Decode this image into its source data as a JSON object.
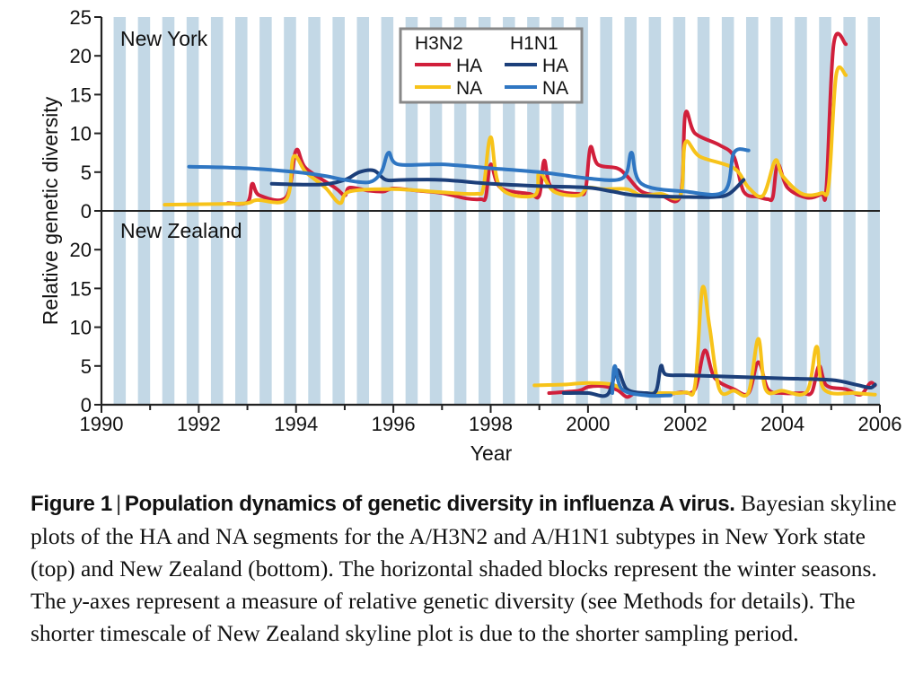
{
  "chart_data": {
    "type": "line",
    "xlabel": "Year",
    "ylabel": "Relative genetic diversity",
    "xlim": [
      1990,
      2006
    ],
    "x_ticks": [
      "1990",
      "1992",
      "1994",
      "1996",
      "1998",
      "2000",
      "2002",
      "2004",
      "2006"
    ],
    "winter_shading": "vertical light-blue blocks, one per winter season",
    "legend": {
      "position": "top-center",
      "group_titles": [
        "H3N2",
        "H1N1"
      ],
      "entries": [
        {
          "group": "H3N2",
          "label": "HA",
          "color": "#d11f3b"
        },
        {
          "group": "H3N2",
          "label": "NA",
          "color": "#f7c31a"
        },
        {
          "group": "H1N1",
          "label": "HA",
          "color": "#1c3f7a"
        },
        {
          "group": "H1N1",
          "label": "NA",
          "color": "#2f76c2"
        }
      ]
    },
    "panels": [
      {
        "name": "New York",
        "ylim": [
          0,
          25
        ],
        "y_ticks": [
          "0",
          "5",
          "10",
          "15",
          "20",
          "25"
        ],
        "series": [
          {
            "name": "H3N2 HA",
            "color": "#d11f3b",
            "points": [
              [
                1992.6,
                1.0
              ],
              [
                1993.0,
                1.1
              ],
              [
                1993.1,
                3.5
              ],
              [
                1993.25,
                2.0
              ],
              [
                1993.8,
                1.8
              ],
              [
                1994.0,
                7.8
              ],
              [
                1994.2,
                5.5
              ],
              [
                1994.8,
                3.0
              ],
              [
                1995.0,
                2.0
              ],
              [
                1995.1,
                3.0
              ],
              [
                1995.5,
                2.6
              ],
              [
                1995.8,
                2.5
              ],
              [
                1996.0,
                2.9
              ],
              [
                1996.5,
                2.6
              ],
              [
                1997.0,
                2.3
              ],
              [
                1997.5,
                1.6
              ],
              [
                1997.8,
                1.5
              ],
              [
                1997.9,
                1.8
              ],
              [
                1998.0,
                6.0
              ],
              [
                1998.2,
                3.0
              ],
              [
                1998.8,
                2.2
              ],
              [
                1999.0,
                2.0
              ],
              [
                1999.1,
                6.5
              ],
              [
                1999.25,
                3.0
              ],
              [
                1999.8,
                2.2
              ],
              [
                1999.95,
                2.8
              ],
              [
                2000.05,
                8.2
              ],
              [
                2000.2,
                6.0
              ],
              [
                2000.6,
                5.5
              ],
              [
                2000.8,
                4.5
              ],
              [
                2001.1,
                2.5
              ],
              [
                2001.5,
                2.0
              ],
              [
                2001.9,
                2.0
              ],
              [
                2002.0,
                12.5
              ],
              [
                2002.2,
                10.0
              ],
              [
                2002.7,
                8.5
              ],
              [
                2003.0,
                7.0
              ],
              [
                2003.2,
                2.5
              ],
              [
                2003.5,
                1.8
              ],
              [
                2003.7,
                1.5
              ],
              [
                2003.8,
                1.8
              ],
              [
                2003.9,
                6.0
              ],
              [
                2004.1,
                3.0
              ],
              [
                2004.5,
                1.7
              ],
              [
                2004.8,
                2.2
              ],
              [
                2004.9,
                3.0
              ],
              [
                2005.05,
                21.5
              ],
              [
                2005.3,
                21.5
              ]
            ]
          },
          {
            "name": "H3N2 NA",
            "color": "#f7c31a",
            "points": [
              [
                1991.3,
                0.8
              ],
              [
                1992.5,
                0.9
              ],
              [
                1993.0,
                1.0
              ],
              [
                1993.2,
                1.4
              ],
              [
                1993.8,
                1.5
              ],
              [
                1993.95,
                7.0
              ],
              [
                1994.2,
                5.0
              ],
              [
                1994.6,
                3.0
              ],
              [
                1994.9,
                1.0
              ],
              [
                1995.1,
                2.5
              ],
              [
                1996.0,
                2.8
              ],
              [
                1997.0,
                2.4
              ],
              [
                1997.7,
                2.2
              ],
              [
                1997.85,
                3.0
              ],
              [
                1998.0,
                9.5
              ],
              [
                1998.2,
                3.0
              ],
              [
                1998.9,
                2.0
              ],
              [
                1999.0,
                5.0
              ],
              [
                1999.3,
                2.5
              ],
              [
                1999.8,
                2.0
              ],
              [
                2000.0,
                3.0
              ],
              [
                2000.3,
                2.8
              ],
              [
                2000.8,
                2.8
              ],
              [
                2001.1,
                2.0
              ],
              [
                2001.5,
                2.2
              ],
              [
                2001.9,
                2.0
              ],
              [
                2002.0,
                8.8
              ],
              [
                2002.3,
                7.0
              ],
              [
                2003.0,
                5.5
              ],
              [
                2003.3,
                3.0
              ],
              [
                2003.6,
                2.0
              ],
              [
                2003.85,
                6.5
              ],
              [
                2004.0,
                4.5
              ],
              [
                2004.4,
                2.2
              ],
              [
                2004.8,
                2.3
              ],
              [
                2004.95,
                3.5
              ],
              [
                2005.1,
                17.5
              ],
              [
                2005.3,
                17.5
              ]
            ]
          },
          {
            "name": "H1N1 HA",
            "color": "#1c3f7a",
            "points": [
              [
                1993.5,
                3.5
              ],
              [
                1994.5,
                3.4
              ],
              [
                1995.0,
                4.0
              ],
              [
                1995.3,
                5.0
              ],
              [
                1995.6,
                5.2
              ],
              [
                1995.85,
                4.0
              ],
              [
                1996.2,
                4.0
              ],
              [
                1997.0,
                4.0
              ],
              [
                1998.0,
                3.5
              ],
              [
                1999.0,
                3.2
              ],
              [
                2000.0,
                3.0
              ],
              [
                2000.5,
                2.5
              ],
              [
                2001.0,
                2.0
              ],
              [
                2002.0,
                1.8
              ],
              [
                2002.6,
                1.8
              ],
              [
                2002.9,
                2.2
              ],
              [
                2003.2,
                4.0
              ]
            ]
          },
          {
            "name": "H1N1 NA",
            "color": "#2f76c2",
            "points": [
              [
                1991.8,
                5.7
              ],
              [
                1993.0,
                5.5
              ],
              [
                1994.0,
                5.0
              ],
              [
                1994.6,
                4.5
              ],
              [
                1995.0,
                4.0
              ],
              [
                1995.5,
                3.7
              ],
              [
                1995.75,
                5.0
              ],
              [
                1995.9,
                7.5
              ],
              [
                1996.1,
                6.0
              ],
              [
                1997.0,
                6.0
              ],
              [
                1998.0,
                5.5
              ],
              [
                1999.0,
                5.0
              ],
              [
                2000.0,
                4.2
              ],
              [
                2000.6,
                4.0
              ],
              [
                2000.8,
                5.0
              ],
              [
                2000.9,
                7.5
              ],
              [
                2001.1,
                3.5
              ],
              [
                2002.0,
                2.5
              ],
              [
                2002.8,
                2.5
              ],
              [
                2003.0,
                7.5
              ],
              [
                2003.3,
                7.8
              ]
            ]
          }
        ]
      },
      {
        "name": "New Zealand",
        "ylim": [
          0,
          25
        ],
        "y_ticks": [
          "0",
          "5",
          "10",
          "15",
          "20"
        ],
        "series": [
          {
            "name": "H3N2 HA",
            "color": "#d11f3b",
            "points": [
              [
                1999.2,
                1.5
              ],
              [
                1999.8,
                1.8
              ],
              [
                2000.0,
                2.3
              ],
              [
                2000.3,
                2.4
              ],
              [
                2000.6,
                1.9
              ],
              [
                2000.8,
                1.0
              ],
              [
                2001.0,
                1.5
              ],
              [
                2001.5,
                1.3
              ],
              [
                2001.9,
                1.6
              ],
              [
                2002.2,
                2.0
              ],
              [
                2002.4,
                7.0
              ],
              [
                2002.6,
                3.5
              ],
              [
                2003.0,
                2.0
              ],
              [
                2003.3,
                1.5
              ],
              [
                2003.5,
                5.5
              ],
              [
                2003.7,
                2.0
              ],
              [
                2004.0,
                1.5
              ],
              [
                2004.4,
                1.5
              ],
              [
                2004.6,
                1.6
              ],
              [
                2004.75,
                5.0
              ],
              [
                2004.9,
                2.5
              ],
              [
                2005.3,
                2.0
              ],
              [
                2005.6,
                1.3
              ],
              [
                2005.8,
                2.8
              ],
              [
                2005.9,
                2.5
              ]
            ]
          },
          {
            "name": "H3N2 NA",
            "color": "#f7c31a",
            "points": [
              [
                1998.9,
                2.5
              ],
              [
                1999.5,
                2.6
              ],
              [
                2000.0,
                2.8
              ],
              [
                2000.5,
                2.6
              ],
              [
                2000.9,
                1.5
              ],
              [
                2001.5,
                1.5
              ],
              [
                2002.0,
                1.6
              ],
              [
                2002.2,
                2.5
              ],
              [
                2002.35,
                15.0
              ],
              [
                2002.5,
                10.0
              ],
              [
                2002.7,
                2.0
              ],
              [
                2003.0,
                1.8
              ],
              [
                2003.3,
                1.6
              ],
              [
                2003.5,
                8.5
              ],
              [
                2003.65,
                2.0
              ],
              [
                2004.0,
                1.8
              ],
              [
                2004.5,
                1.7
              ],
              [
                2004.7,
                7.5
              ],
              [
                2004.85,
                2.0
              ],
              [
                2005.5,
                1.5
              ],
              [
                2005.9,
                1.3
              ]
            ]
          },
          {
            "name": "H1N1 HA",
            "color": "#1c3f7a",
            "points": [
              [
                1999.5,
                1.5
              ],
              [
                2000.0,
                1.5
              ],
              [
                2000.4,
                1.3
              ],
              [
                2000.6,
                4.5
              ],
              [
                2000.8,
                2.0
              ],
              [
                2001.2,
                1.5
              ],
              [
                2001.4,
                1.8
              ],
              [
                2001.5,
                5.0
              ],
              [
                2001.6,
                3.9
              ],
              [
                2002.0,
                3.8
              ],
              [
                2003.0,
                3.6
              ],
              [
                2004.0,
                3.4
              ],
              [
                2005.0,
                3.2
              ],
              [
                2005.5,
                2.6
              ],
              [
                2005.8,
                2.2
              ],
              [
                2005.9,
                2.6
              ]
            ]
          },
          {
            "name": "H1N1 NA",
            "color": "#2f76c2",
            "points": [
              [
                2000.5,
                1.5
              ],
              [
                2000.55,
                5.0
              ],
              [
                2000.7,
                2.0
              ],
              [
                2001.2,
                1.2
              ],
              [
                2001.7,
                1.2
              ]
            ]
          }
        ]
      }
    ]
  },
  "caption": {
    "title": "Figure 1",
    "separator": "|",
    "title_text": "Population dynamics of genetic diversity in influenza A virus.",
    "body_1": "Bayesian skyline plots of the HA and NA segments for the A/H3N2 and A/H1N1 subtypes in New York state (top) and New Zealand (bottom). The horizontal shaded blocks represent the winter seasons. The ",
    "body_y": "y",
    "body_2": "-axes represent a measure of relative genetic diversity (see Methods for details). The shorter timescale of New Zealand skyline plot is due to the shorter sampling period."
  }
}
